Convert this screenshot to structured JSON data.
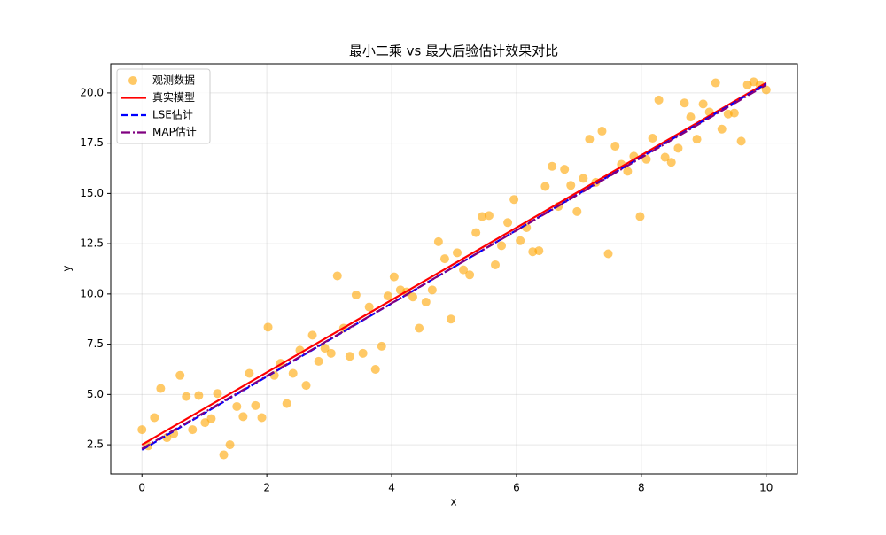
{
  "chart_data": {
    "type": "scatter",
    "title": "最小二乘 vs 最大后验估计效果对比",
    "x_label": "x",
    "y_label": "y",
    "xlim": [
      -0.5,
      10.5
    ],
    "ylim": [
      1.05,
      21.45
    ],
    "xticks": [
      0,
      2,
      4,
      6,
      8,
      10
    ],
    "yticks": [
      2.5,
      {
        "value": 5,
        "label": "5.0"
      },
      7.5,
      {
        "value": 10,
        "label": "10.0"
      },
      12.5,
      {
        "value": 15,
        "label": "15.0"
      },
      17.5,
      {
        "value": 20,
        "label": "20.0"
      }
    ],
    "grid": true,
    "legend": "upper left",
    "series": [
      {
        "name": "观测数据",
        "type": "scatter",
        "color": "#ffa500",
        "x": [
          0,
          0.1,
          0.2,
          0.3,
          0.4,
          0.51,
          0.61,
          0.71,
          0.81,
          0.91,
          1.01,
          1.11,
          1.21,
          1.31,
          1.41,
          1.52,
          1.62,
          1.72,
          1.82,
          1.92,
          2.02,
          2.12,
          2.22,
          2.32,
          2.42,
          2.53,
          2.63,
          2.73,
          2.83,
          2.93,
          3.03,
          3.13,
          3.23,
          3.33,
          3.43,
          3.54,
          3.64,
          3.74,
          3.84,
          3.94,
          4.04,
          4.14,
          4.24,
          4.34,
          4.44,
          4.55,
          4.65,
          4.75,
          4.85,
          4.95,
          5.05,
          5.15,
          5.25,
          5.35,
          5.45,
          5.56,
          5.66,
          5.76,
          5.86,
          5.96,
          6.06,
          6.16,
          6.26,
          6.36,
          6.46,
          6.57,
          6.67,
          6.77,
          6.87,
          6.97,
          7.07,
          7.17,
          7.27,
          7.37,
          7.47,
          7.58,
          7.68,
          7.78,
          7.88,
          7.98,
          8.08,
          8.18,
          8.28,
          8.38,
          8.48,
          8.59,
          8.69,
          8.79,
          8.89,
          8.99,
          9.09,
          9.19,
          9.29,
          9.39,
          9.49,
          9.6,
          9.7,
          9.8,
          9.9,
          10
        ],
        "values": [
          3.25,
          2.45,
          3.85,
          5.3,
          2.85,
          3.05,
          5.95,
          4.9,
          3.25,
          4.95,
          3.6,
          3.8,
          5.05,
          2.0,
          2.5,
          4.4,
          3.9,
          6.05,
          4.45,
          3.85,
          8.35,
          5.95,
          6.55,
          4.55,
          6.05,
          7.2,
          5.45,
          7.95,
          6.65,
          7.3,
          7.05,
          10.9,
          8.3,
          6.9,
          9.95,
          7.05,
          9.35,
          6.25,
          7.4,
          9.9,
          10.85,
          10.2,
          10.1,
          9.85,
          8.3,
          9.6,
          10.2,
          12.6,
          11.75,
          8.75,
          12.05,
          11.2,
          10.95,
          13.05,
          13.85,
          13.9,
          11.45,
          12.4,
          13.55,
          14.7,
          12.65,
          13.3,
          12.1,
          12.15,
          15.35,
          16.35,
          14.35,
          16.2,
          15.4,
          14.1,
          15.75,
          17.7,
          15.55,
          18.1,
          12.0,
          17.35,
          16.45,
          16.1,
          16.85,
          13.85,
          16.7,
          17.75,
          19.65,
          16.8,
          16.55,
          17.25,
          19.5,
          18.8,
          17.7,
          19.45,
          19.05,
          20.5,
          18.2,
          18.95,
          19.0,
          17.6,
          20.4,
          20.55,
          20.4,
          20.15
        ]
      },
      {
        "name": "真实模型",
        "type": "line",
        "color": "#ff0000",
        "dash": "solid",
        "x": [
          0,
          10
        ],
        "values": [
          2.5,
          20.5
        ]
      },
      {
        "name": "LSE估计",
        "type": "line",
        "color": "#0000ff",
        "dash": "dashed",
        "x": [
          0,
          10
        ],
        "values": [
          2.25,
          20.45
        ]
      },
      {
        "name": "MAP估计",
        "type": "line",
        "color": "#800080",
        "dash": "dashdot",
        "x": [
          0,
          10
        ],
        "values": [
          2.3,
          20.4
        ]
      }
    ]
  }
}
